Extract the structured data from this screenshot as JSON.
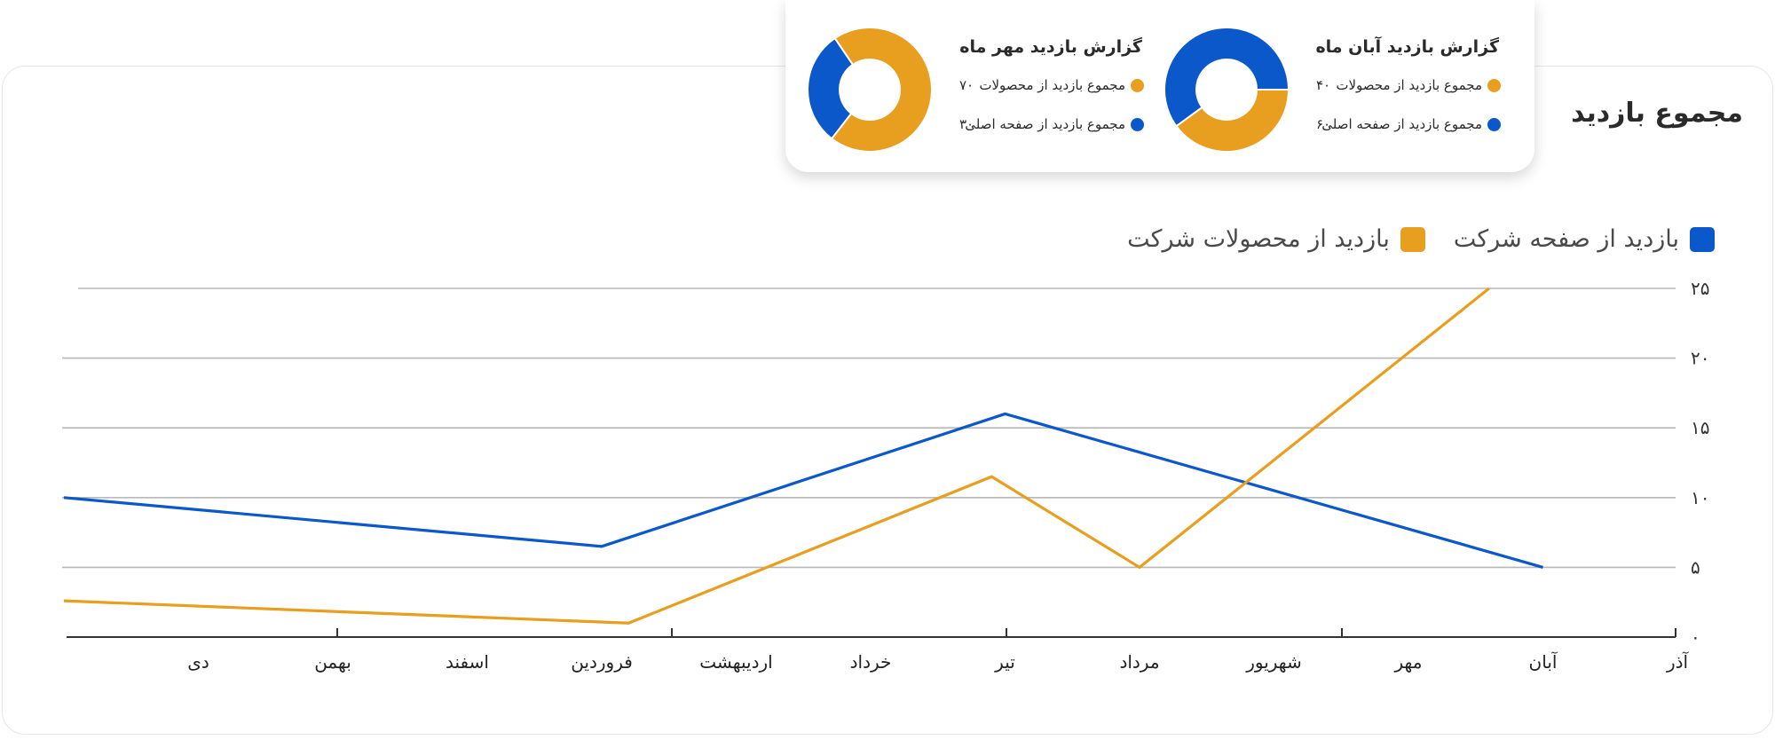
{
  "colors": {
    "blue": "#0A58CA",
    "orange": "#E89E1E",
    "grid": "#b8b8b8",
    "axis": "#333333"
  },
  "title": "مجموع بازدید",
  "popup": {
    "reports": [
      {
        "title": "گزارش بازدید آبان ماه",
        "rows": [
          {
            "label": "مجموع بازدید از محصولات",
            "value": "۴۰",
            "color": "#E89E1E"
          },
          {
            "label": "مجموع بازدید از صفحه اصلی",
            "value": "۶۰",
            "color": "#0A58CA"
          }
        ],
        "donut": [
          {
            "value": 40,
            "color": "#E89E1E"
          },
          {
            "value": 60,
            "color": "#0A58CA"
          }
        ]
      },
      {
        "title": "گزارش بازدید مهر ماه",
        "rows": [
          {
            "label": "مجموع بازدید از محصولات",
            "value": "۷۰",
            "color": "#E89E1E"
          },
          {
            "label": "مجموع بازدید از صفحه اصلی",
            "value": "۳۰",
            "color": "#0A58CA"
          }
        ],
        "donut": [
          {
            "value": 70,
            "color": "#E89E1E"
          },
          {
            "value": 30,
            "color": "#0A58CA"
          }
        ]
      }
    ]
  },
  "chart_data": {
    "type": "line",
    "title": "مجموع بازدید",
    "categories": [
      "آذر",
      "آبان",
      "مهر",
      "شهریور",
      "مرداد",
      "تیر",
      "خرداد",
      "اردیبهشت",
      "فروردین",
      "اسفند",
      "بهمن",
      "دی"
    ],
    "yticks": [
      "۰",
      "۵",
      "۱۰",
      "۱۵",
      "۲۰",
      "۲۵"
    ],
    "ylim": [
      0,
      25
    ],
    "legend": "top-right",
    "grid": true,
    "series": [
      {
        "name": "بازدید از صفحه شرکت",
        "color": "#0A58CA",
        "points": [
          [
            1,
            5
          ],
          [
            5,
            16
          ],
          [
            8,
            6.5
          ],
          [
            12,
            10
          ]
        ]
      },
      {
        "name": "بازدید از محصولات شرکت",
        "color": "#E89E1E",
        "points": [
          [
            1.4,
            25
          ],
          [
            4,
            5
          ],
          [
            5.1,
            11.5
          ],
          [
            7.8,
            1
          ],
          [
            12,
            2.6
          ]
        ]
      }
    ]
  }
}
